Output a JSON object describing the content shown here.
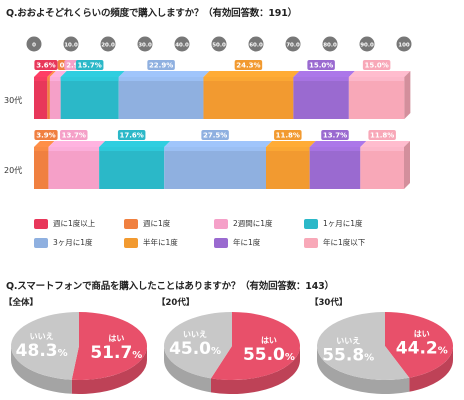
{
  "question1": {
    "title": "Q.おおよそどれくらいの頻度で購入しますか？（有効回答数：191）"
  },
  "question2": {
    "title": "Q.スマートフォンで商品を購入したことはありますか？（有効回答数：143）"
  },
  "colors": {
    "weekly_plus": "#e8375a",
    "weekly": "#f08040",
    "biweekly": "#f5a0c8",
    "monthly": "#2bb8c8",
    "three_months": "#8fb0e0",
    "half_year": "#f29a30",
    "yearly": "#9a6ad0",
    "less_yearly": "#f8a8b8",
    "hai": "#e8506a",
    "iie": "#c8c8c8"
  },
  "chart_data": [
    {
      "type": "bar",
      "orientation": "horizontal",
      "stacked": true,
      "x_ticks": [
        "0",
        "10.0",
        "20.0",
        "30.0",
        "40.0",
        "50.0",
        "60.0",
        "70.0",
        "80.0",
        "90.0",
        "100"
      ],
      "xlim": [
        0,
        100
      ],
      "categories": [
        "30代",
        "20代"
      ],
      "legend": {
        "placement": "bottom",
        "items": [
          {
            "key": "weekly_plus",
            "label": "週に1度以上"
          },
          {
            "key": "weekly",
            "label": "週に1度"
          },
          {
            "key": "biweekly",
            "label": "2週間に1度"
          },
          {
            "key": "monthly",
            "label": "1ヶ月に1度"
          },
          {
            "key": "three_months",
            "label": "3ヶ月に1度"
          },
          {
            "key": "half_year",
            "label": "半年に1度"
          },
          {
            "key": "yearly",
            "label": "年に1度"
          },
          {
            "key": "less_yearly",
            "label": "年に1度以下"
          }
        ]
      },
      "series": [
        {
          "name": "週に1度以上",
          "key": "weekly_plus",
          "values": [
            3.6,
            0.0
          ],
          "labels": [
            "3.6%",
            ""
          ]
        },
        {
          "name": "週に1度",
          "key": "weekly",
          "values": [
            0.7,
            3.9
          ],
          "labels": [
            "0.7%",
            "3.9%"
          ]
        },
        {
          "name": "2週間に1度",
          "key": "biweekly",
          "values": [
            2.9,
            13.7
          ],
          "labels": [
            "2.9%",
            "13.7%"
          ]
        },
        {
          "name": "1ヶ月に1度",
          "key": "monthly",
          "values": [
            15.7,
            17.6
          ],
          "labels": [
            "15.7%",
            "17.6%"
          ]
        },
        {
          "name": "3ヶ月に1度",
          "key": "three_months",
          "values": [
            22.9,
            27.5
          ],
          "labels": [
            "22.9%",
            "27.5%"
          ]
        },
        {
          "name": "半年に1度",
          "key": "half_year",
          "values": [
            24.3,
            11.8
          ],
          "labels": [
            "24.3%",
            "11.8%"
          ]
        },
        {
          "name": "年に1度",
          "key": "yearly",
          "values": [
            15.0,
            13.7
          ],
          "labels": [
            "15.0%",
            "13.7%"
          ]
        },
        {
          "name": "年に1度以下",
          "key": "less_yearly",
          "values": [
            15.0,
            11.8
          ],
          "labels": [
            "15.0%",
            "11.8%"
          ]
        }
      ]
    },
    {
      "type": "pie",
      "label": "【全体】",
      "slices": [
        {
          "name": "はい",
          "value": 51.7,
          "num": "51.7",
          "unit": "%"
        },
        {
          "name": "いいえ",
          "value": 48.3,
          "num": "48.3",
          "unit": "%"
        }
      ]
    },
    {
      "type": "pie",
      "label": "【20代】",
      "slices": [
        {
          "name": "はい",
          "value": 55.0,
          "num": "55.0",
          "unit": "%"
        },
        {
          "name": "いいえ",
          "value": 45.0,
          "num": "45.0",
          "unit": "%"
        }
      ]
    },
    {
      "type": "pie",
      "label": "【30代】",
      "slices": [
        {
          "name": "はい",
          "value": 44.2,
          "num": "44.2",
          "unit": "%"
        },
        {
          "name": "いいえ",
          "value": 55.8,
          "num": "55.8",
          "unit": "%"
        }
      ]
    }
  ]
}
